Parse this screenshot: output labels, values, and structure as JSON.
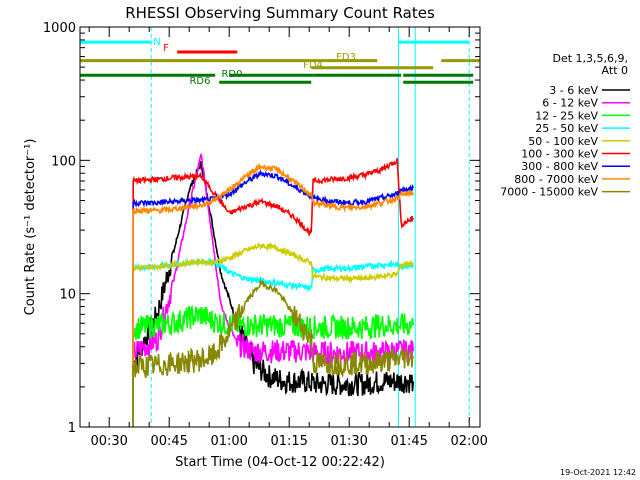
{
  "chart_data": {
    "type": "line",
    "title": "RHESSI Observing Summary Count Rates",
    "xlabel": "Start Time (04-Oct-12 00:22:42)",
    "ylabel": "Count Rate (s⁻¹ detector⁻¹)",
    "yscale": "log",
    "ylim": [
      1,
      1000
    ],
    "xlim_minutes": [
      22.7,
      122.7
    ],
    "x_tick_minutes": [
      30,
      45,
      60,
      75,
      90,
      105,
      120
    ],
    "x_tick_labels": [
      "00:30",
      "00:45",
      "01:00",
      "01:15",
      "01:30",
      "01:45",
      "02:00"
    ],
    "y_tick_values": [
      1,
      10,
      100,
      1000
    ],
    "y_tick_labels": [
      "1",
      "10",
      "100",
      "1000"
    ],
    "legend_title": [
      "Det 1,3,5,6,9,",
      "Att 0"
    ],
    "legend_position": "right",
    "footer": "19-Oct-2021 12:42",
    "night_intervals_minutes": [
      [
        22.7,
        40.5
      ],
      [
        102.3,
        122.7
      ]
    ],
    "night_markers_minutes": [
      40.5,
      102.3,
      106.5,
      120.0
    ],
    "data_gaps_minutes": [
      [
        22.7,
        36.0
      ],
      [
        106.5,
        122.7
      ]
    ],
    "saa_boundaries_minutes": [
      80.5
    ],
    "flags": [
      {
        "label": "N",
        "color": "#00ffff",
        "segments": [
          [
            22.7,
            40.5
          ],
          [
            102.3,
            120.0
          ]
        ],
        "level": 770
      },
      {
        "label": "F",
        "color": "#ff0000",
        "segments": [
          [
            47.0,
            62.0
          ]
        ],
        "level": 650
      },
      {
        "label": "FD3",
        "color": "#999900",
        "segments": [
          [
            22.7,
            80.5
          ],
          [
            80.5,
            97.0
          ],
          [
            113.0,
            122.7
          ]
        ],
        "level": 560
      },
      {
        "label": "FD4",
        "color": "#999900",
        "segments": [
          [
            80.5,
            111.0
          ]
        ],
        "level": 495
      },
      {
        "label": "RD0",
        "color": "#007700",
        "segments": [
          [
            22.7,
            56.5
          ],
          [
            60.0,
            81.0
          ],
          [
            81.0,
            103.0
          ],
          [
            103.5,
            121.0
          ]
        ],
        "level": 435
      },
      {
        "label": "RD6",
        "color": "#007700",
        "segments": [
          [
            57.5,
            80.5
          ],
          [
            103.5,
            121.0
          ]
        ],
        "level": 385
      }
    ],
    "series": [
      {
        "name": "3 - 6 keV",
        "color": "#000000",
        "x": [
          36,
          42,
          46,
          50,
          53,
          55,
          58,
          62,
          66,
          70,
          74,
          78,
          82,
          86,
          90,
          94,
          98,
          102,
          106
        ],
        "y": [
          3,
          7,
          20,
          60,
          95,
          45,
          14,
          6,
          3,
          2.4,
          2.2,
          2.2,
          2.1,
          2.1,
          2.1,
          2.1,
          2.2,
          2.2,
          2.2
        ]
      },
      {
        "name": "6 - 12 keV",
        "color": "#ff00ff",
        "x": [
          36,
          42,
          46,
          50,
          53,
          55,
          58,
          62,
          66,
          70,
          74,
          78,
          82,
          86,
          90,
          94,
          98,
          102,
          106
        ],
        "y": [
          3.6,
          4.5,
          12,
          45,
          110,
          40,
          8,
          4.2,
          3.7,
          3.7,
          3.7,
          3.7,
          3.6,
          3.6,
          3.6,
          3.6,
          3.6,
          3.7,
          3.7
        ]
      },
      {
        "name": "12 - 25 keV",
        "color": "#00ff00",
        "x": [
          36,
          42,
          46,
          50,
          53,
          55,
          58,
          62,
          66,
          70,
          74,
          78,
          82,
          86,
          90,
          94,
          98,
          102,
          106
        ],
        "y": [
          5.5,
          5.8,
          6.0,
          6.6,
          7.0,
          6.4,
          6.0,
          5.8,
          5.8,
          5.8,
          5.7,
          5.7,
          5.6,
          5.6,
          5.6,
          5.6,
          5.8,
          5.8,
          5.8
        ]
      },
      {
        "name": "25 - 50 keV",
        "color": "#00ffff",
        "x": [
          36,
          42,
          46,
          50,
          53,
          56,
          60,
          64,
          68,
          72,
          76,
          80.5,
          81,
          86,
          90,
          94,
          98,
          102,
          103,
          106
        ],
        "y": [
          15.5,
          16.0,
          16.5,
          17.0,
          17.5,
          17.5,
          14.5,
          13.0,
          12.5,
          12.0,
          11.5,
          11.0,
          15.0,
          15.5,
          15.5,
          16.0,
          16.5,
          16.5,
          16.0,
          16.5
        ]
      },
      {
        "name": "50 - 100 keV",
        "color": "#cccc00",
        "x": [
          36,
          42,
          46,
          50,
          53,
          56,
          60,
          64,
          68,
          72,
          76,
          80.5,
          81,
          86,
          90,
          94,
          98,
          102,
          103,
          106
        ],
        "y": [
          15.5,
          16.0,
          16.5,
          17.0,
          17.5,
          17.0,
          18.5,
          21.0,
          23.0,
          22.0,
          19.5,
          17.0,
          13.5,
          13.0,
          13.0,
          13.0,
          13.5,
          14.0,
          16.5,
          17.0
        ]
      },
      {
        "name": "100 - 300 keV",
        "color": "#ff0000",
        "x": [
          36,
          42,
          46,
          50,
          53,
          56,
          60,
          64,
          68,
          72,
          76,
          80.5,
          81,
          86,
          90,
          94,
          98,
          102,
          103,
          106
        ],
        "y": [
          70,
          72,
          74,
          75,
          76,
          58,
          40,
          45,
          49,
          45,
          38,
          28,
          70,
          72,
          74,
          78,
          85,
          100,
          33,
          37
        ]
      },
      {
        "name": "300 - 800 keV",
        "color": "#0000ff",
        "x": [
          36,
          42,
          46,
          50,
          53,
          56,
          60,
          64,
          68,
          72,
          76,
          80.5,
          81,
          86,
          90,
          94,
          98,
          102,
          103,
          106
        ],
        "y": [
          48,
          48,
          49,
          50,
          50,
          51,
          56,
          68,
          80,
          76,
          64,
          54,
          52,
          49,
          48,
          49,
          52,
          56,
          60,
          62
        ]
      },
      {
        "name": "800 - 7000 keV",
        "color": "#ff8800",
        "x": [
          36,
          42,
          46,
          50,
          53,
          56,
          60,
          64,
          68,
          72,
          76,
          80.5,
          81,
          86,
          90,
          94,
          98,
          102,
          103,
          106
        ],
        "y": [
          42,
          42,
          43,
          45,
          46,
          50,
          60,
          75,
          90,
          85,
          70,
          55,
          48,
          45,
          44,
          45,
          48,
          52,
          55,
          57
        ]
      },
      {
        "name": "7000 - 15000 keV",
        "color": "#888800",
        "x": [
          36,
          42,
          46,
          50,
          53,
          56,
          60,
          64,
          68,
          72,
          76,
          80.5,
          81,
          86,
          90,
          94,
          98,
          102,
          103,
          106
        ],
        "y": [
          2.8,
          2.9,
          3.0,
          3.1,
          3.2,
          3.4,
          5.0,
          8.5,
          12.0,
          10.5,
          7.0,
          4.6,
          3.0,
          3.0,
          3.0,
          3.0,
          3.1,
          3.2,
          3.3,
          3.4
        ]
      }
    ]
  }
}
